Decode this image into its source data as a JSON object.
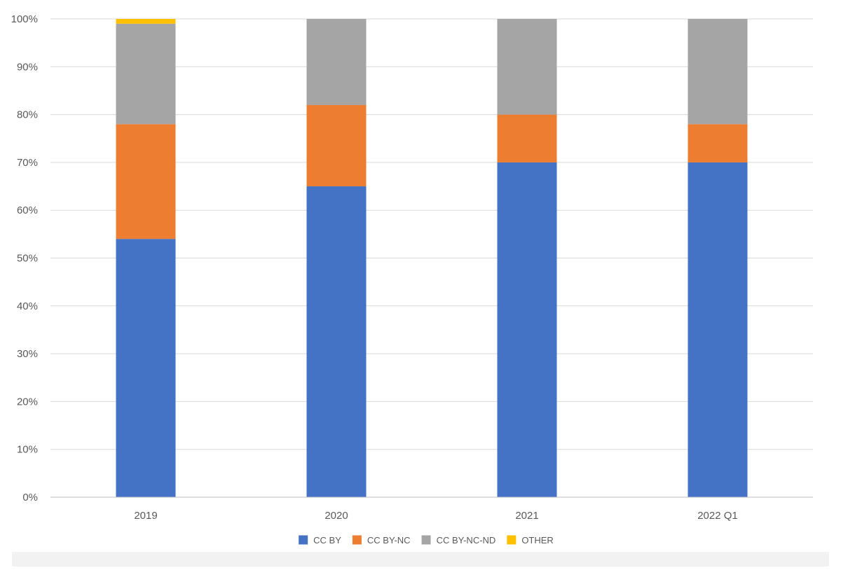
{
  "chart_data": {
    "type": "bar",
    "stacked": true,
    "categories": [
      "2019",
      "2020",
      "2021",
      "2022 Q1"
    ],
    "series": [
      {
        "name": "CC BY",
        "color": "#4472c4",
        "values": [
          54,
          65,
          70,
          70
        ]
      },
      {
        "name": "CC BY-NC",
        "color": "#ed7d31",
        "values": [
          24,
          17,
          10,
          8
        ]
      },
      {
        "name": "CC BY-NC-ND",
        "color": "#a5a5a5",
        "values": [
          21,
          18,
          20,
          22
        ]
      },
      {
        "name": "OTHER",
        "color": "#ffc000",
        "values": [
          1,
          0,
          0,
          0
        ]
      }
    ],
    "y_ticks": [
      "0%",
      "10%",
      "20%",
      "30%",
      "40%",
      "50%",
      "60%",
      "70%",
      "80%",
      "90%",
      "100%"
    ],
    "ylim": [
      0,
      100
    ],
    "unit": "%",
    "grid": true,
    "legend_position": "bottom",
    "title": "",
    "xlabel": "",
    "ylabel": ""
  }
}
